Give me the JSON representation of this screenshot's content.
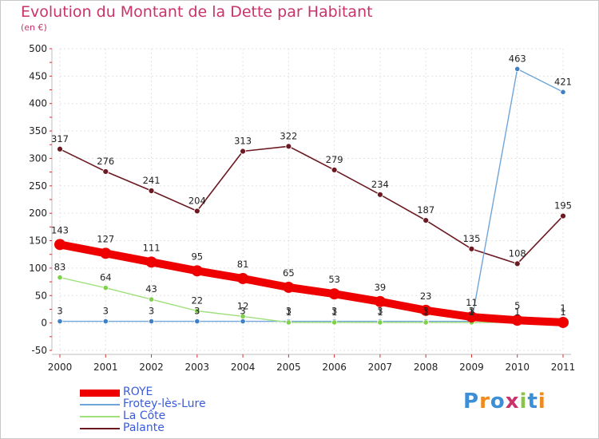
{
  "title": "Evolution du Montant de la Dette par Habitant",
  "subtitle": "(en €)",
  "logo": {
    "text": "Proxiti",
    "colors": [
      "#3a8fd6",
      "#f08a1c",
      "#3a8fd6",
      "#c9336a",
      "#8bc34a",
      "#3a8fd6",
      "#f08a1c"
    ]
  },
  "chart_data": {
    "type": "line",
    "title": "Evolution du Montant de la Dette par Habitant",
    "ylabel": "(en €)",
    "xlabel": "",
    "categories": [
      "2000",
      "2001",
      "2002",
      "2003",
      "2004",
      "2005",
      "2006",
      "2007",
      "2008",
      "2009",
      "2010",
      "2011"
    ],
    "ylim": [
      -50,
      500
    ],
    "yticks": [
      -50,
      0,
      50,
      100,
      150,
      200,
      250,
      300,
      350,
      400,
      450,
      500
    ],
    "legend_position": "bottom-left",
    "series": [
      {
        "name": "Palante",
        "color": "#6b1a22",
        "values": [
          317,
          276,
          241,
          204,
          313,
          322,
          279,
          234,
          187,
          135,
          108,
          195
        ],
        "labels": [
          "317",
          "276",
          "241",
          "204",
          "313",
          "322",
          "279",
          "234",
          "187",
          "135",
          "108",
          "195"
        ],
        "marker_fill": "#6b1a22"
      },
      {
        "name": "Frotey-lès-Lure",
        "color": "#6fa5d8",
        "values": [
          3,
          3,
          3,
          3,
          3,
          3,
          3,
          3,
          3,
          3,
          463,
          421
        ],
        "labels": [
          "3",
          "3",
          "3",
          "3",
          "3",
          "3",
          "3",
          "3",
          "3",
          "3",
          "463",
          "421"
        ],
        "marker_fill": "#3f7fc4"
      },
      {
        "name": "La Côte",
        "color": "#9ee07a",
        "values": [
          83,
          64,
          43,
          22,
          12,
          1,
          1,
          1,
          1,
          1,
          1,
          1
        ],
        "labels": [
          "83",
          "64",
          "43",
          "22",
          "12",
          "1",
          "1",
          "1",
          "1",
          "1",
          "1",
          "1"
        ],
        "marker_fill": "#7fd14a"
      },
      {
        "name": "ROYE",
        "color": "#ee0000",
        "values": [
          143,
          127,
          111,
          95,
          81,
          65,
          53,
          39,
          23,
          11,
          5,
          1
        ],
        "labels": [
          "143",
          "127",
          "111",
          "95",
          "81",
          "65",
          "53",
          "39",
          "23",
          "11",
          "5",
          "1"
        ],
        "marker_fill": "#ee0000"
      }
    ],
    "legend": [
      {
        "name": "ROYE",
        "color": "#ee0000"
      },
      {
        "name": "Frotey-lès-Lure",
        "color": "#6fa5d8"
      },
      {
        "name": "La Côte",
        "color": "#9ee07a"
      },
      {
        "name": "Palante",
        "color": "#6b1a22"
      }
    ]
  }
}
